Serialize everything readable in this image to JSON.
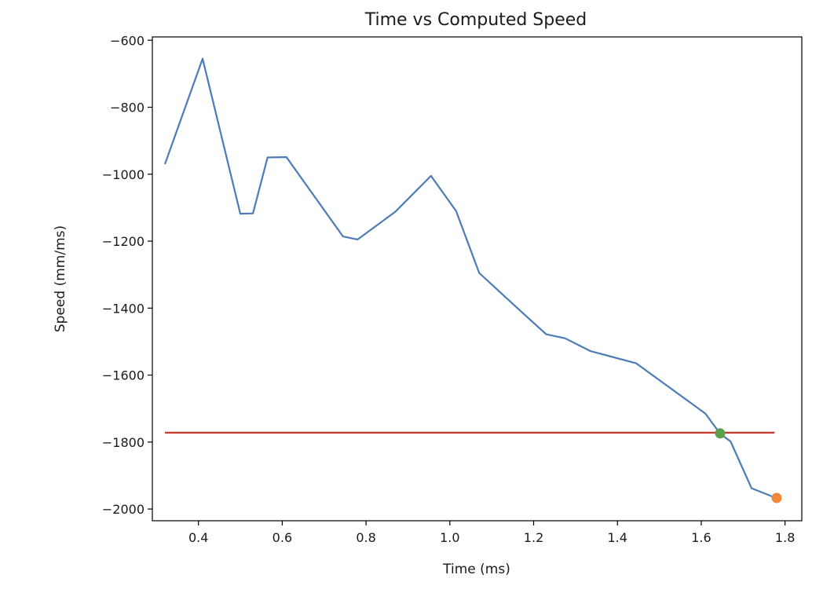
{
  "chart_data": {
    "type": "line",
    "title": "Time vs Computed Speed",
    "xlabel": "Time (ms)",
    "ylabel": "Speed (mm/ms)",
    "xlim": [
      0.29,
      1.84
    ],
    "ylim": [
      -2035,
      -590
    ],
    "xticks": [
      0.4,
      0.6,
      0.8,
      1.0,
      1.2,
      1.4,
      1.6,
      1.8
    ],
    "xtick_labels": [
      "0.4",
      "0.6",
      "0.8",
      "1.0",
      "1.2",
      "1.4",
      "1.6",
      "1.8"
    ],
    "yticks": [
      -600,
      -800,
      -1000,
      -1200,
      -1400,
      -1600,
      -1800,
      -2000
    ],
    "ytick_labels": [
      "−600",
      "−800",
      "−1000",
      "−1200",
      "−1400",
      "−1600",
      "−1800",
      "−2000"
    ],
    "grid": false,
    "series": [
      {
        "kind": "line",
        "color": "#4c7bb5",
        "x": [
          0.32,
          0.41,
          0.5,
          0.53,
          0.565,
          0.61,
          0.745,
          0.78,
          0.87,
          0.955,
          1.015,
          1.07,
          1.17,
          1.23,
          1.275,
          1.335,
          1.445,
          1.61,
          1.645,
          1.67,
          1.72,
          1.78
        ],
        "y": [
          -970,
          -655,
          -1118,
          -1117,
          -950,
          -949,
          -1186,
          -1195,
          -1112,
          -1005,
          -1110,
          -1295,
          -1410,
          -1478,
          -1490,
          -1528,
          -1565,
          -1715,
          -1775,
          -1798,
          -1938,
          -1968
        ]
      },
      {
        "kind": "hline",
        "color": "#c0392b",
        "x": [
          0.32,
          1.775
        ],
        "y": [
          -1772,
          -1772
        ]
      },
      {
        "kind": "point",
        "color": "#5aa04a",
        "x": [
          1.645
        ],
        "y": [
          -1774
        ]
      },
      {
        "kind": "point",
        "color": "#f0883a",
        "x": [
          1.78
        ],
        "y": [
          -1967
        ]
      }
    ]
  }
}
